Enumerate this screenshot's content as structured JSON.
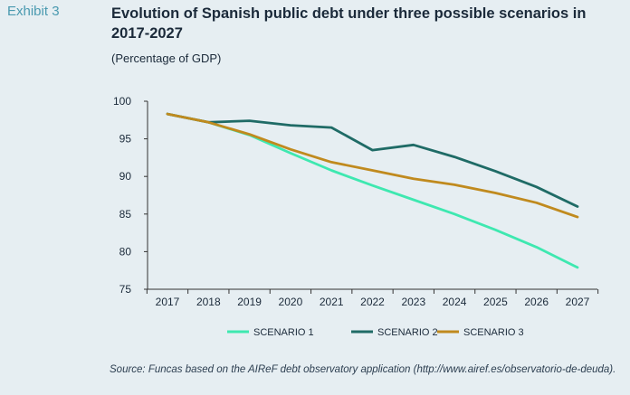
{
  "exhibit_label": "Exhibit 3",
  "title": "Evolution of Spanish public debt under three possible scenarios in 2017-2027",
  "subtitle": "(Percentage of GDP)",
  "source": "Source: Funcas based on the AIReF debt observatory application (http://www.airef.es/observatorio-de-deuda).",
  "chart_data": {
    "type": "line",
    "x": [
      "2017",
      "2018",
      "2019",
      "2020",
      "2021",
      "2022",
      "2023",
      "2024",
      "2025",
      "2026",
      "2027"
    ],
    "ylim": [
      75,
      100
    ],
    "yticks": [
      75,
      80,
      85,
      90,
      95,
      100
    ],
    "grid": false,
    "legend_position": "bottom",
    "series": [
      {
        "name": "SCENARIO 1",
        "color": "#3ee8b0",
        "values": [
          98.3,
          97.2,
          95.5,
          93.1,
          90.8,
          88.8,
          86.9,
          85.0,
          82.9,
          80.6,
          77.9
        ]
      },
      {
        "name": "SCENARIO 2",
        "color": "#1f6b66",
        "values": [
          98.3,
          97.2,
          97.4,
          96.8,
          96.5,
          93.5,
          94.2,
          92.6,
          90.7,
          88.6,
          86.0
        ]
      },
      {
        "name": "SCENARIO 3",
        "color": "#c08a1e",
        "values": [
          98.3,
          97.2,
          95.6,
          93.6,
          91.9,
          90.8,
          89.7,
          88.9,
          87.8,
          86.5,
          84.6
        ]
      }
    ]
  }
}
